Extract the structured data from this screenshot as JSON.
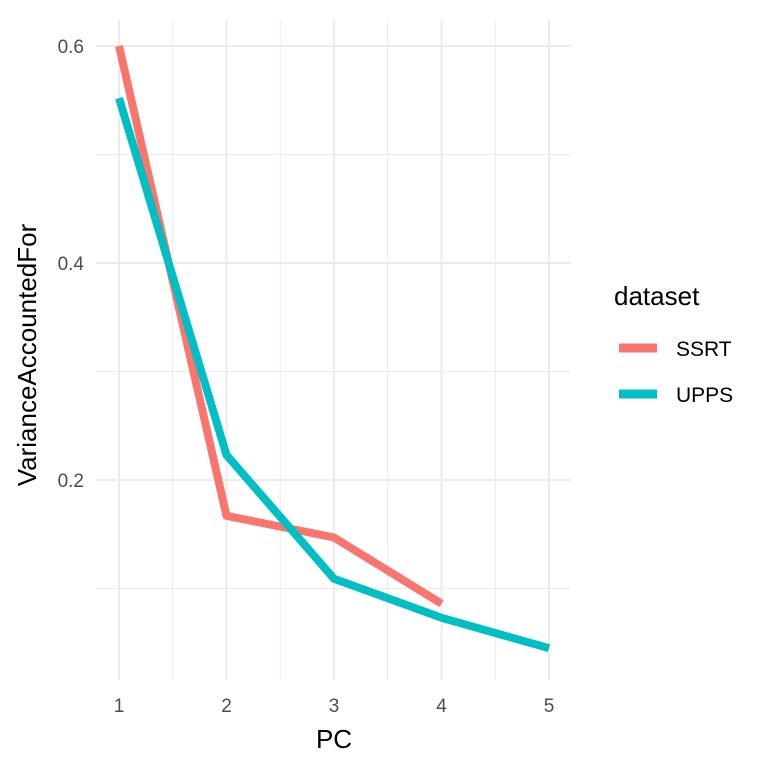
{
  "chart_data": {
    "type": "line",
    "xlabel": "PC",
    "ylabel": "VarianceAccountedFor",
    "xlim": [
      1,
      5
    ],
    "ylim": [
      0.03,
      0.6
    ],
    "x_ticks": [
      1,
      2,
      3,
      4,
      5
    ],
    "y_ticks": [
      0.2,
      0.4,
      0.6
    ],
    "y_tick_labels": [
      "0.2",
      "0.4",
      "0.6"
    ],
    "x_tick_labels": [
      "1",
      "2",
      "3",
      "4",
      "5"
    ],
    "grid": true,
    "legend": {
      "title": "dataset",
      "position": "right"
    },
    "series": [
      {
        "name": "SSRT",
        "color": "#F8766D",
        "x": [
          1,
          2,
          3,
          4
        ],
        "y": [
          0.6,
          0.167,
          0.147,
          0.086
        ]
      },
      {
        "name": "UPPS",
        "color": "#00BFC4",
        "x": [
          1,
          2,
          3,
          4,
          5
        ],
        "y": [
          0.552,
          0.223,
          0.109,
          0.073,
          0.045
        ]
      }
    ]
  }
}
